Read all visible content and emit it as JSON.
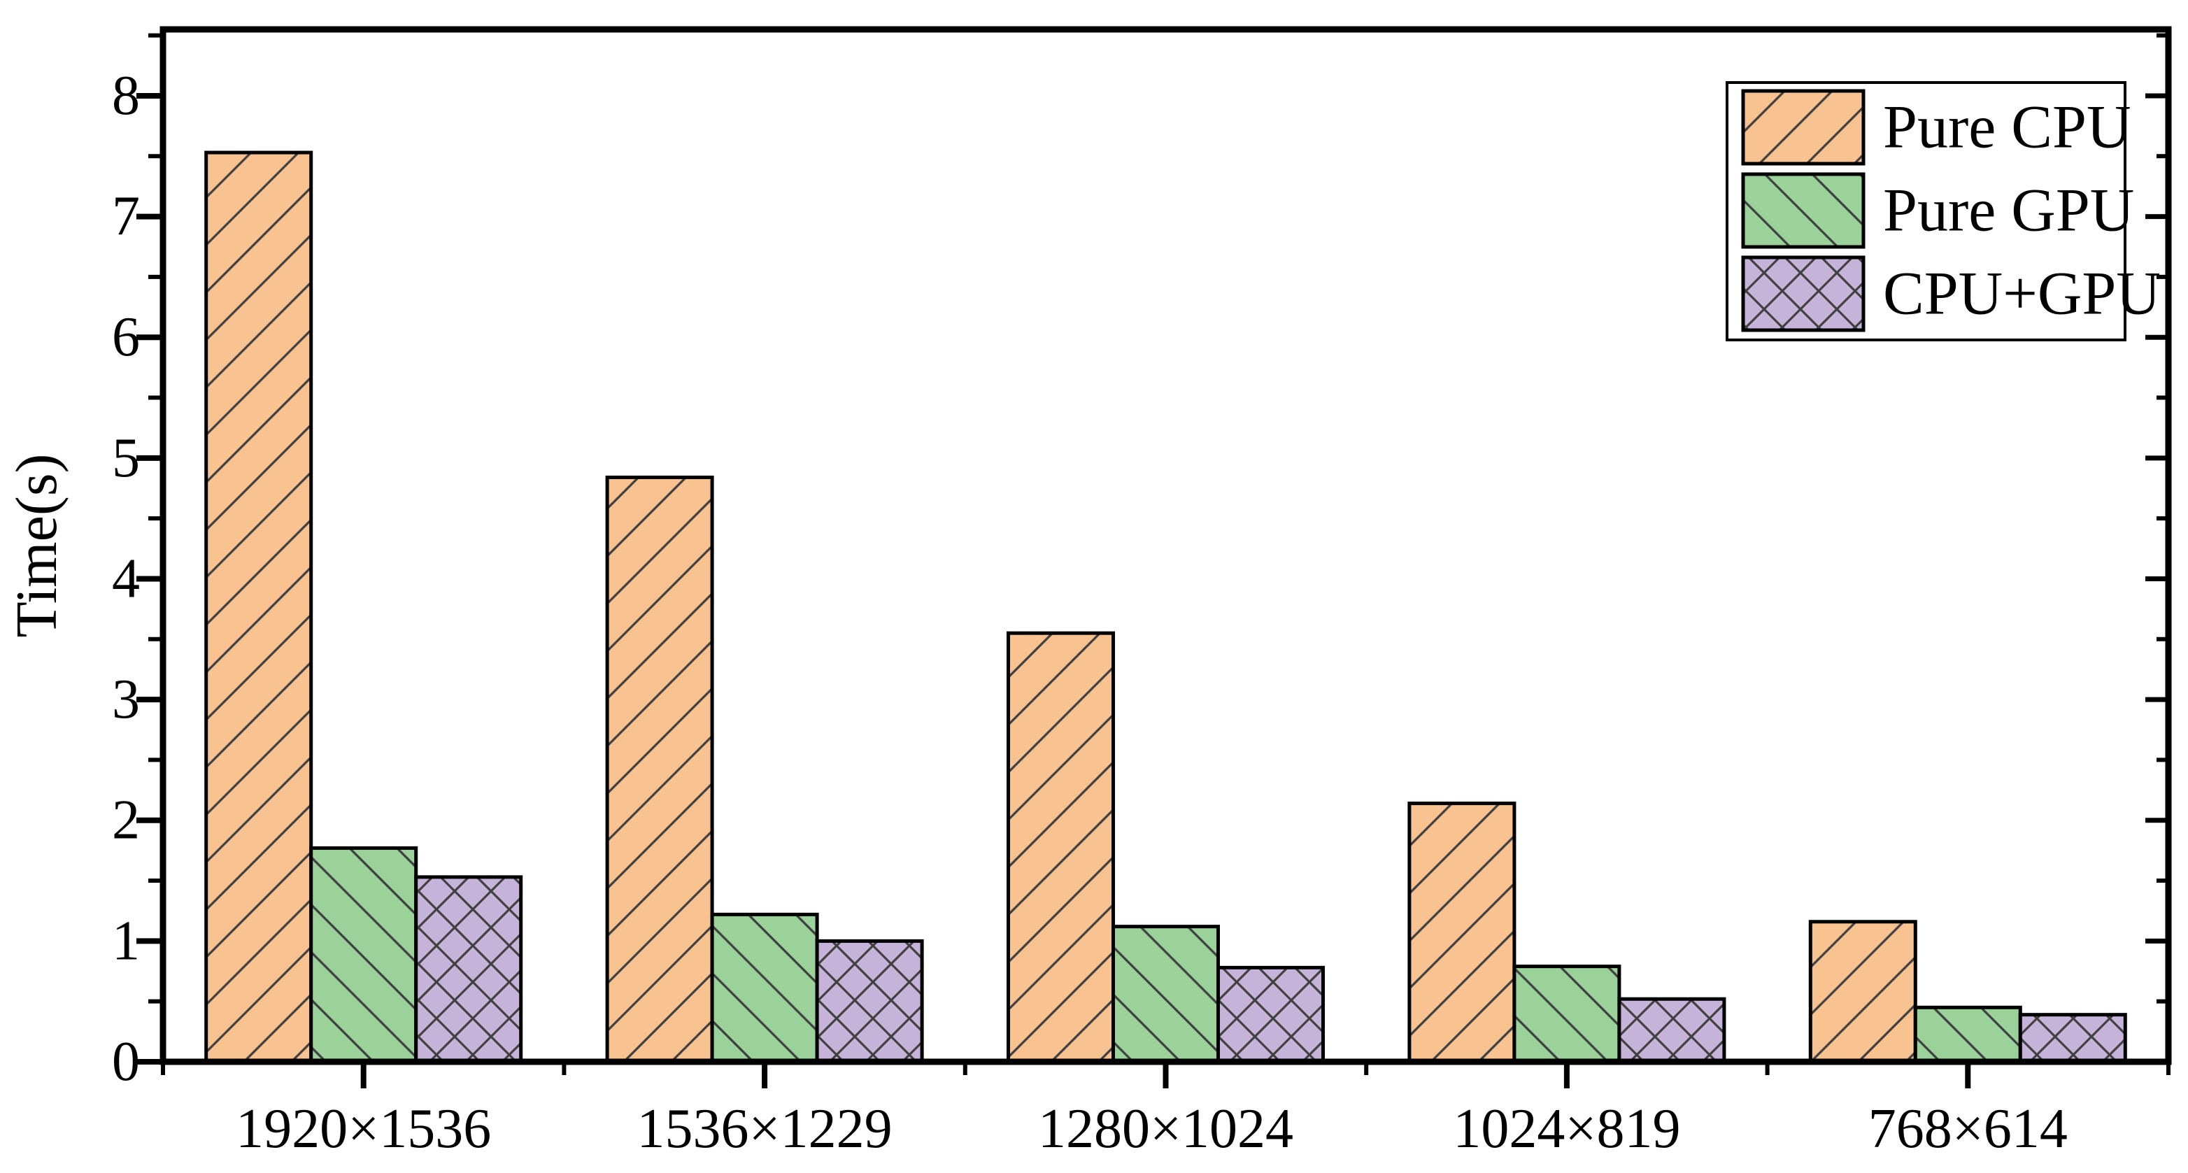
{
  "chart_data": {
    "type": "bar",
    "title": "",
    "categories": [
      "1920×1536",
      "1536×1229",
      "1280×1024",
      "1024×819",
      "768×614"
    ],
    "series": [
      {
        "name": "Pure CPU",
        "color": "#F8C391",
        "hatch": "slash",
        "values": [
          7.53,
          4.84,
          3.55,
          2.14,
          1.16
        ]
      },
      {
        "name": "Pure GPU",
        "color": "#9AD29A",
        "hatch": "backslash",
        "values": [
          1.77,
          1.22,
          1.12,
          0.79,
          0.45
        ]
      },
      {
        "name": "CPU+GPU",
        "color": "#C6B3D9",
        "hatch": "cross",
        "values": [
          1.53,
          1.0,
          0.78,
          0.52,
          0.39
        ]
      }
    ],
    "xlabel": "",
    "ylabel": "Time(s)",
    "ylim": [
      0,
      8.55
    ],
    "yticks_major": [
      0,
      1,
      2,
      3,
      4,
      5,
      6,
      7,
      8
    ],
    "ytick_minor_step": 0.5,
    "grid": false,
    "legend_position": "top-right",
    "frame": "full-box",
    "hatch_line_color": "#404040",
    "axis_color": "#000000",
    "background_color": "#ffffff"
  }
}
